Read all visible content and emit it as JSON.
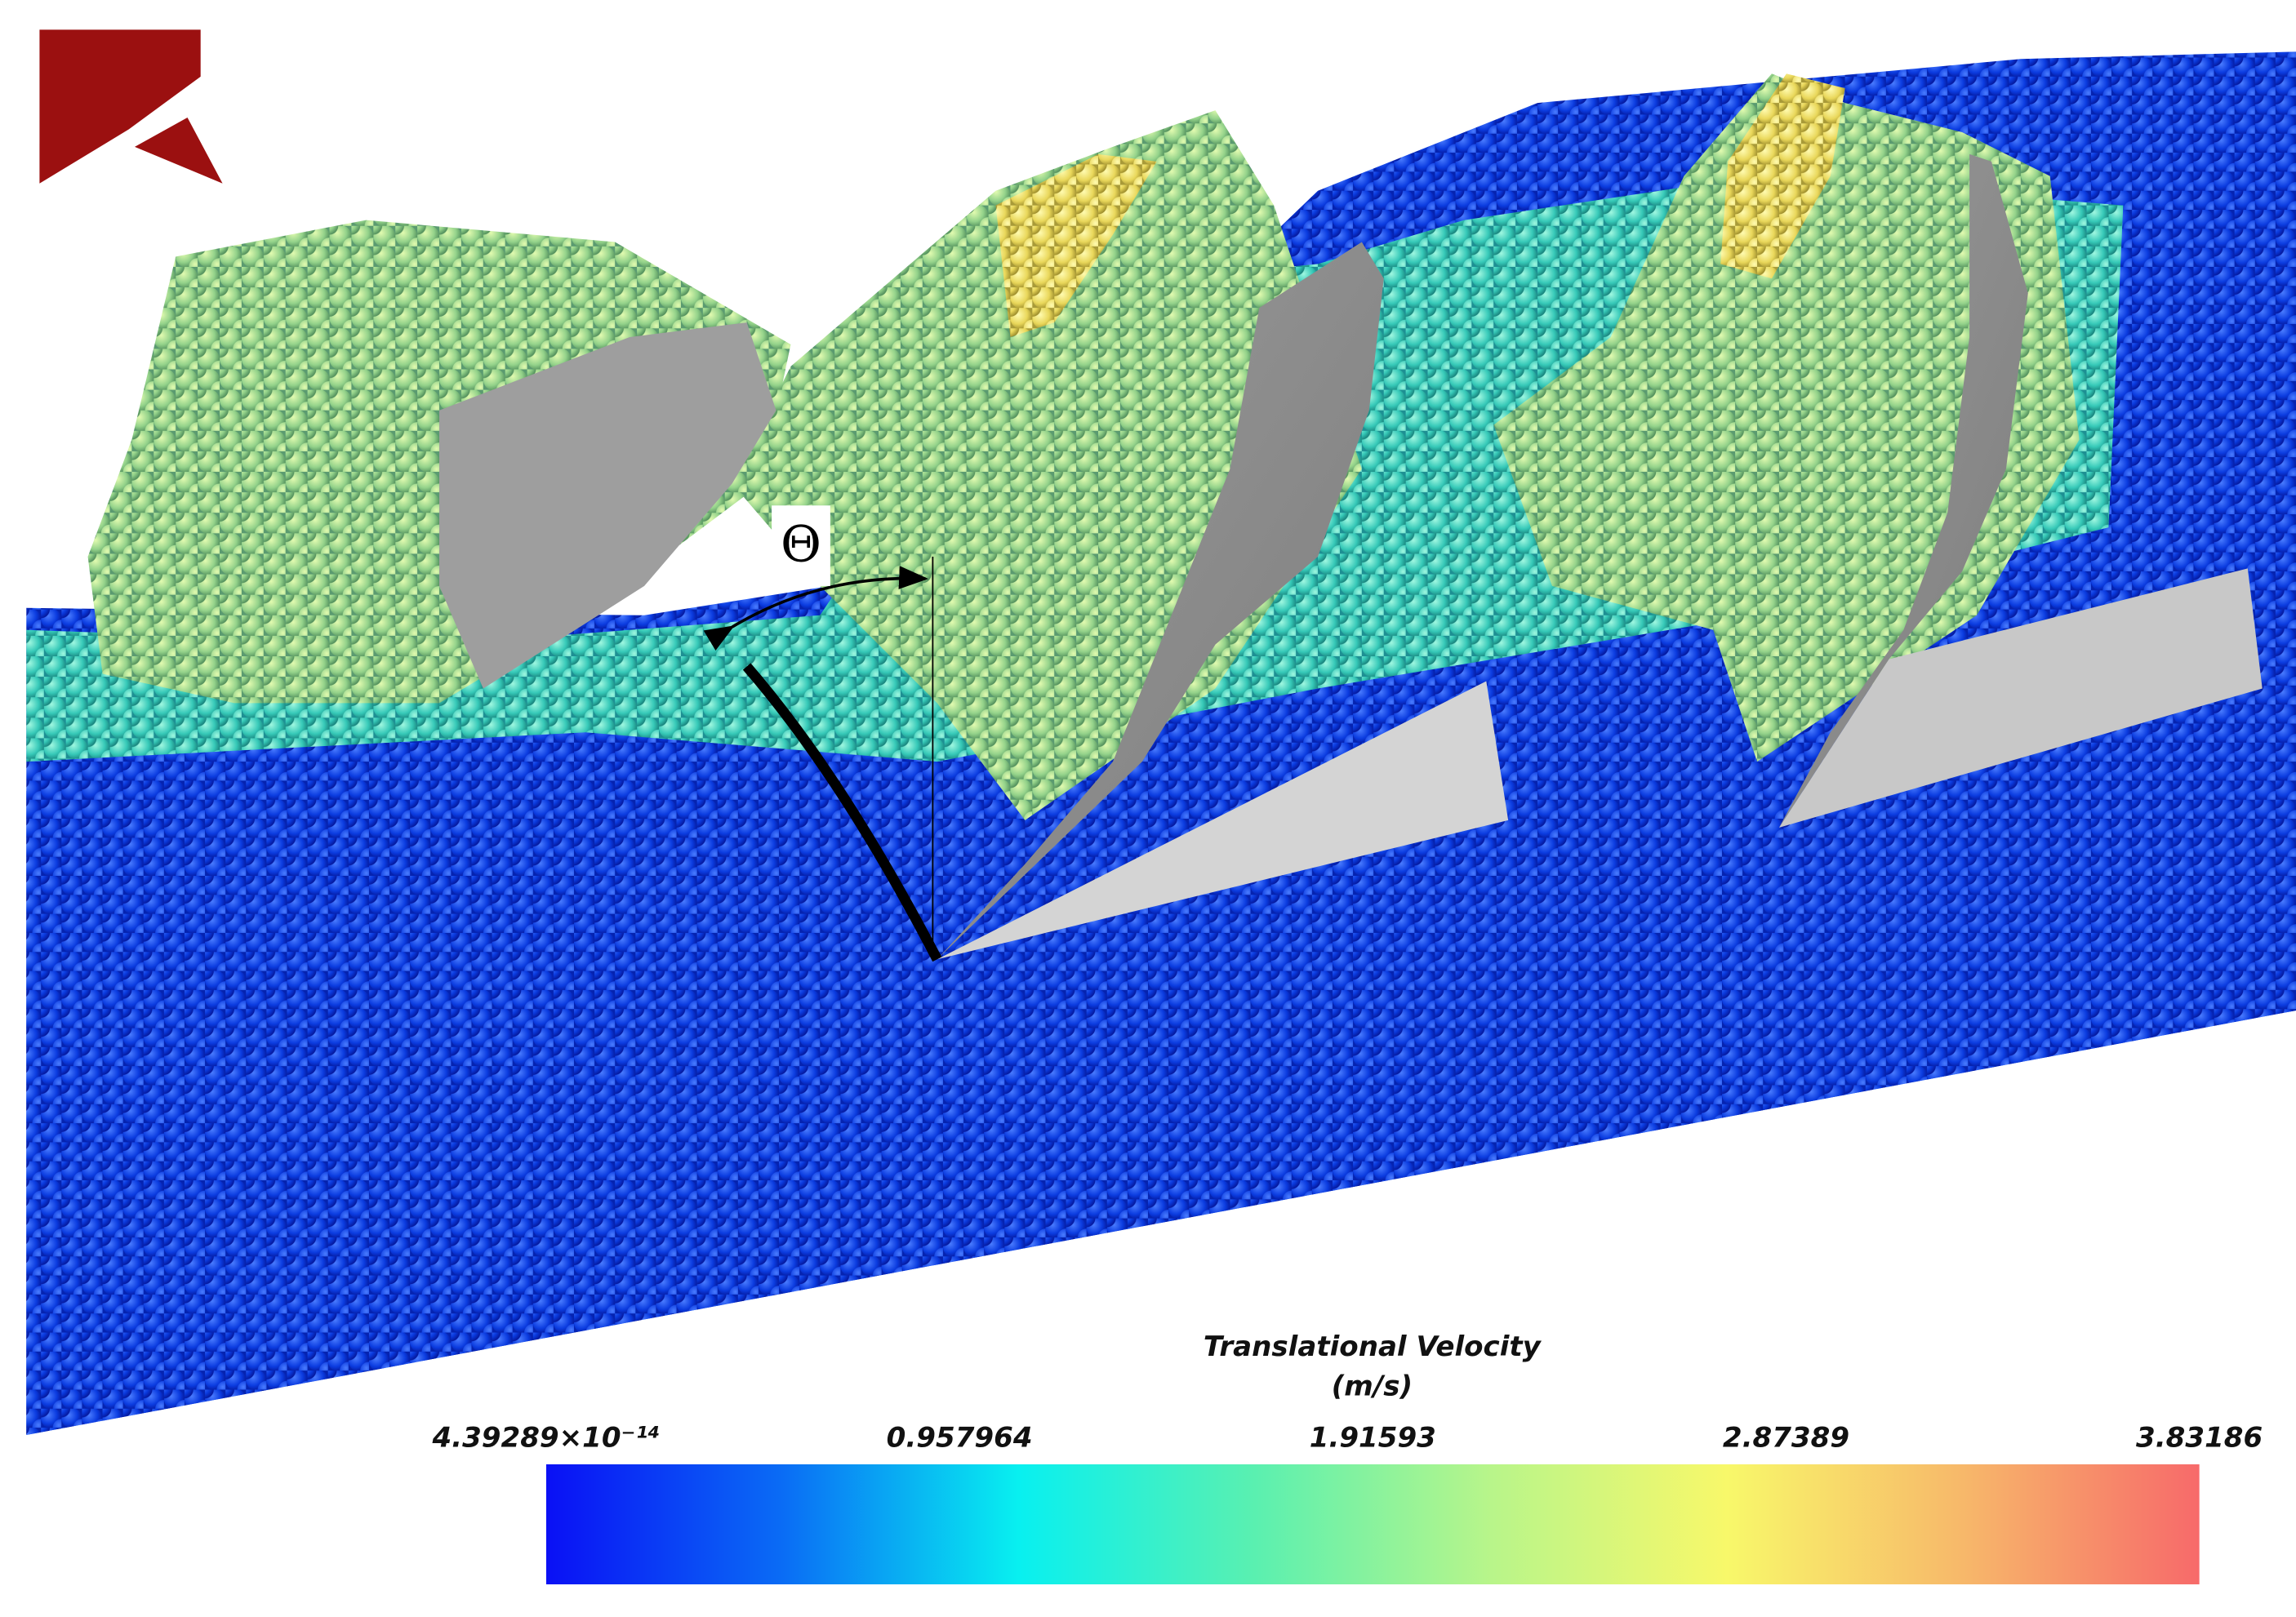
{
  "annotation": {
    "label": "Θ"
  },
  "colorbar": {
    "title": "Translational Velocity",
    "unit": "(m/s)",
    "range": [
      4.39289e-14,
      3.83186
    ],
    "ticks": [
      {
        "value": 4.39289e-14,
        "label": "4.39289×10⁻¹⁴"
      },
      0.957964,
      1.91593,
      2.87389,
      3.83186
    ],
    "colors": [
      "#0a10f5",
      "#0a6cf5",
      "#08f0f0",
      "#5af0b0",
      "#b8f58a",
      "#f8f86a",
      "#f7b86a",
      "#f76a6a"
    ]
  }
}
